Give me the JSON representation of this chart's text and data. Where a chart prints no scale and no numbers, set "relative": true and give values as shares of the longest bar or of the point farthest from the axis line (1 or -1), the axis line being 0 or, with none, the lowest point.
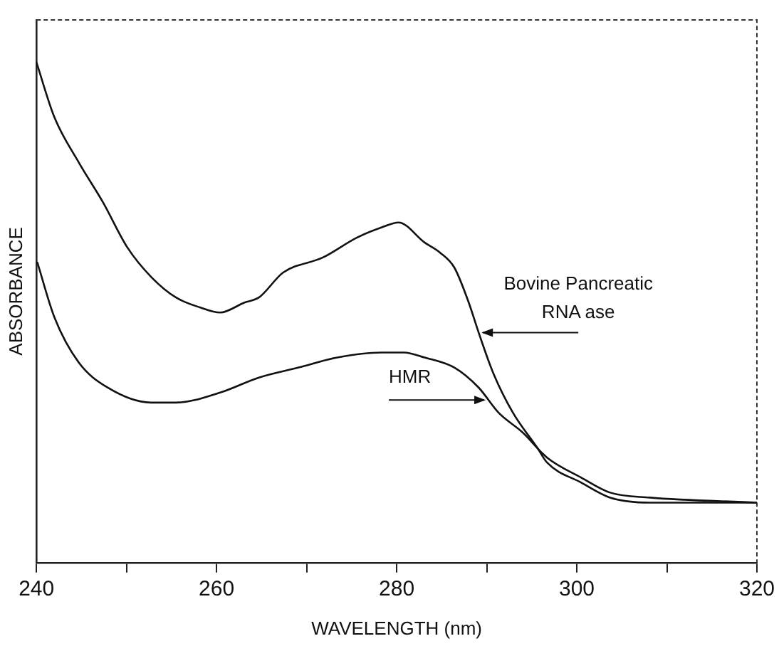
{
  "chart_data": {
    "type": "line",
    "relative": true,
    "xlabel": "WAVELENGTH (nm)",
    "ylabel": "ABSORBANCE",
    "xlim": [
      240,
      320
    ],
    "xticks": [
      240,
      {
        "value": 250,
        "label": null
      },
      260,
      {
        "value": 270,
        "label": null
      },
      280,
      {
        "value": 290,
        "label": null
      },
      300,
      {
        "value": 310,
        "label": null
      },
      320
    ],
    "grid": false,
    "legend": false,
    "marker": "none",
    "line_style": "solid",
    "series": [
      {
        "name": "Bovine Pancreatic RNA ase",
        "color": "#111111",
        "x": [
          240,
          242,
          244.7,
          247.4,
          250.1,
          252.8,
          255.5,
          258.2,
          260.4,
          263.1,
          264.7,
          267.4,
          271.8,
          275.6,
          278.3,
          280.2,
          283.1,
          284.8,
          286.4,
          288,
          289.1,
          290.7,
          292.9,
          295.6,
          296.7,
          300.5,
          303.7,
          308.1,
          320
        ],
        "values": [
          1.0,
          0.89,
          0.8,
          0.72,
          0.63,
          0.57,
          0.53,
          0.51,
          0.5,
          0.52,
          0.53,
          0.58,
          0.61,
          0.65,
          0.67,
          0.68,
          0.64,
          0.62,
          0.59,
          0.52,
          0.46,
          0.38,
          0.3,
          0.23,
          0.2,
          0.16,
          0.13,
          0.12,
          0.12
        ]
      },
      {
        "name": "HMR",
        "color": "#111111",
        "x": [
          240.1,
          242,
          244.7,
          247.9,
          252.7,
          255.5,
          260.4,
          264.7,
          269.1,
          273.4,
          278.3,
          280.8,
          283.1,
          286.4,
          289.1,
          291.3,
          294,
          296.7,
          300.5,
          303.7,
          308.1,
          320
        ],
        "values": [
          0.6,
          0.49,
          0.4,
          0.35,
          0.32,
          0.32,
          0.34,
          0.37,
          0.39,
          0.41,
          0.42,
          0.42,
          0.41,
          0.39,
          0.35,
          0.3,
          0.26,
          0.21,
          0.17,
          0.14,
          0.13,
          0.12
        ]
      }
    ]
  }
}
